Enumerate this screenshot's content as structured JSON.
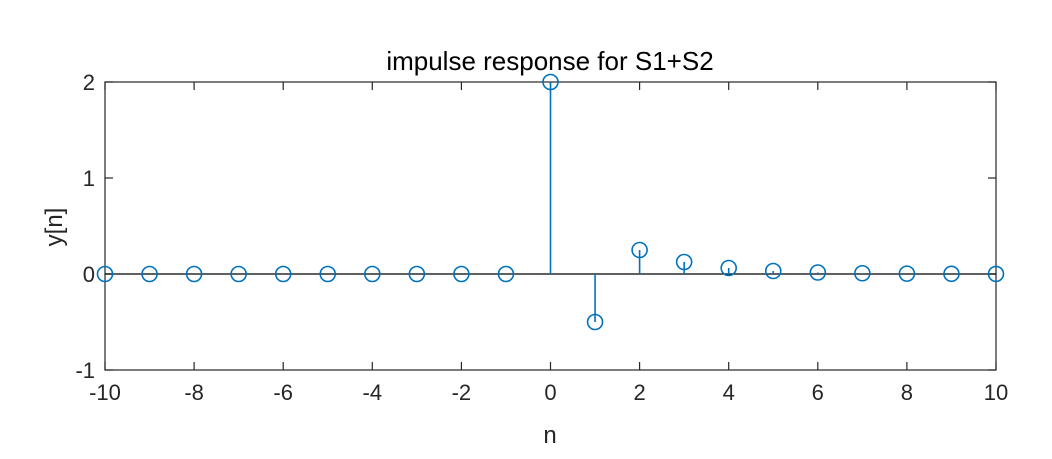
{
  "chart_data": {
    "type": "stem",
    "title": "impulse response for S1+S2",
    "xlabel": "n",
    "ylabel": "y[n]",
    "xlim": [
      -10,
      10
    ],
    "ylim": [
      -1,
      2
    ],
    "x_ticks": [
      "-10",
      "-8",
      "-6",
      "-4",
      "-2",
      "0",
      "2",
      "4",
      "6",
      "8",
      "10"
    ],
    "y_ticks": [
      "-1",
      "0",
      "1",
      "2"
    ],
    "x": [
      -10,
      -9,
      -8,
      -7,
      -6,
      -5,
      -4,
      -3,
      -2,
      -1,
      0,
      1,
      2,
      3,
      4,
      5,
      6,
      7,
      8,
      9,
      10
    ],
    "y": [
      0,
      0,
      0,
      0,
      0,
      0,
      0,
      0,
      0,
      0,
      2,
      -0.5,
      0.25,
      0.125,
      0.0625,
      0.03125,
      0.015625,
      0.0078125,
      0.00390625,
      0.001953125,
      0.0009765625
    ],
    "grid": false,
    "marker": "open-circle",
    "series_color": "#0072BD",
    "axes_color": "#262626",
    "baseline_color": "#000000"
  }
}
